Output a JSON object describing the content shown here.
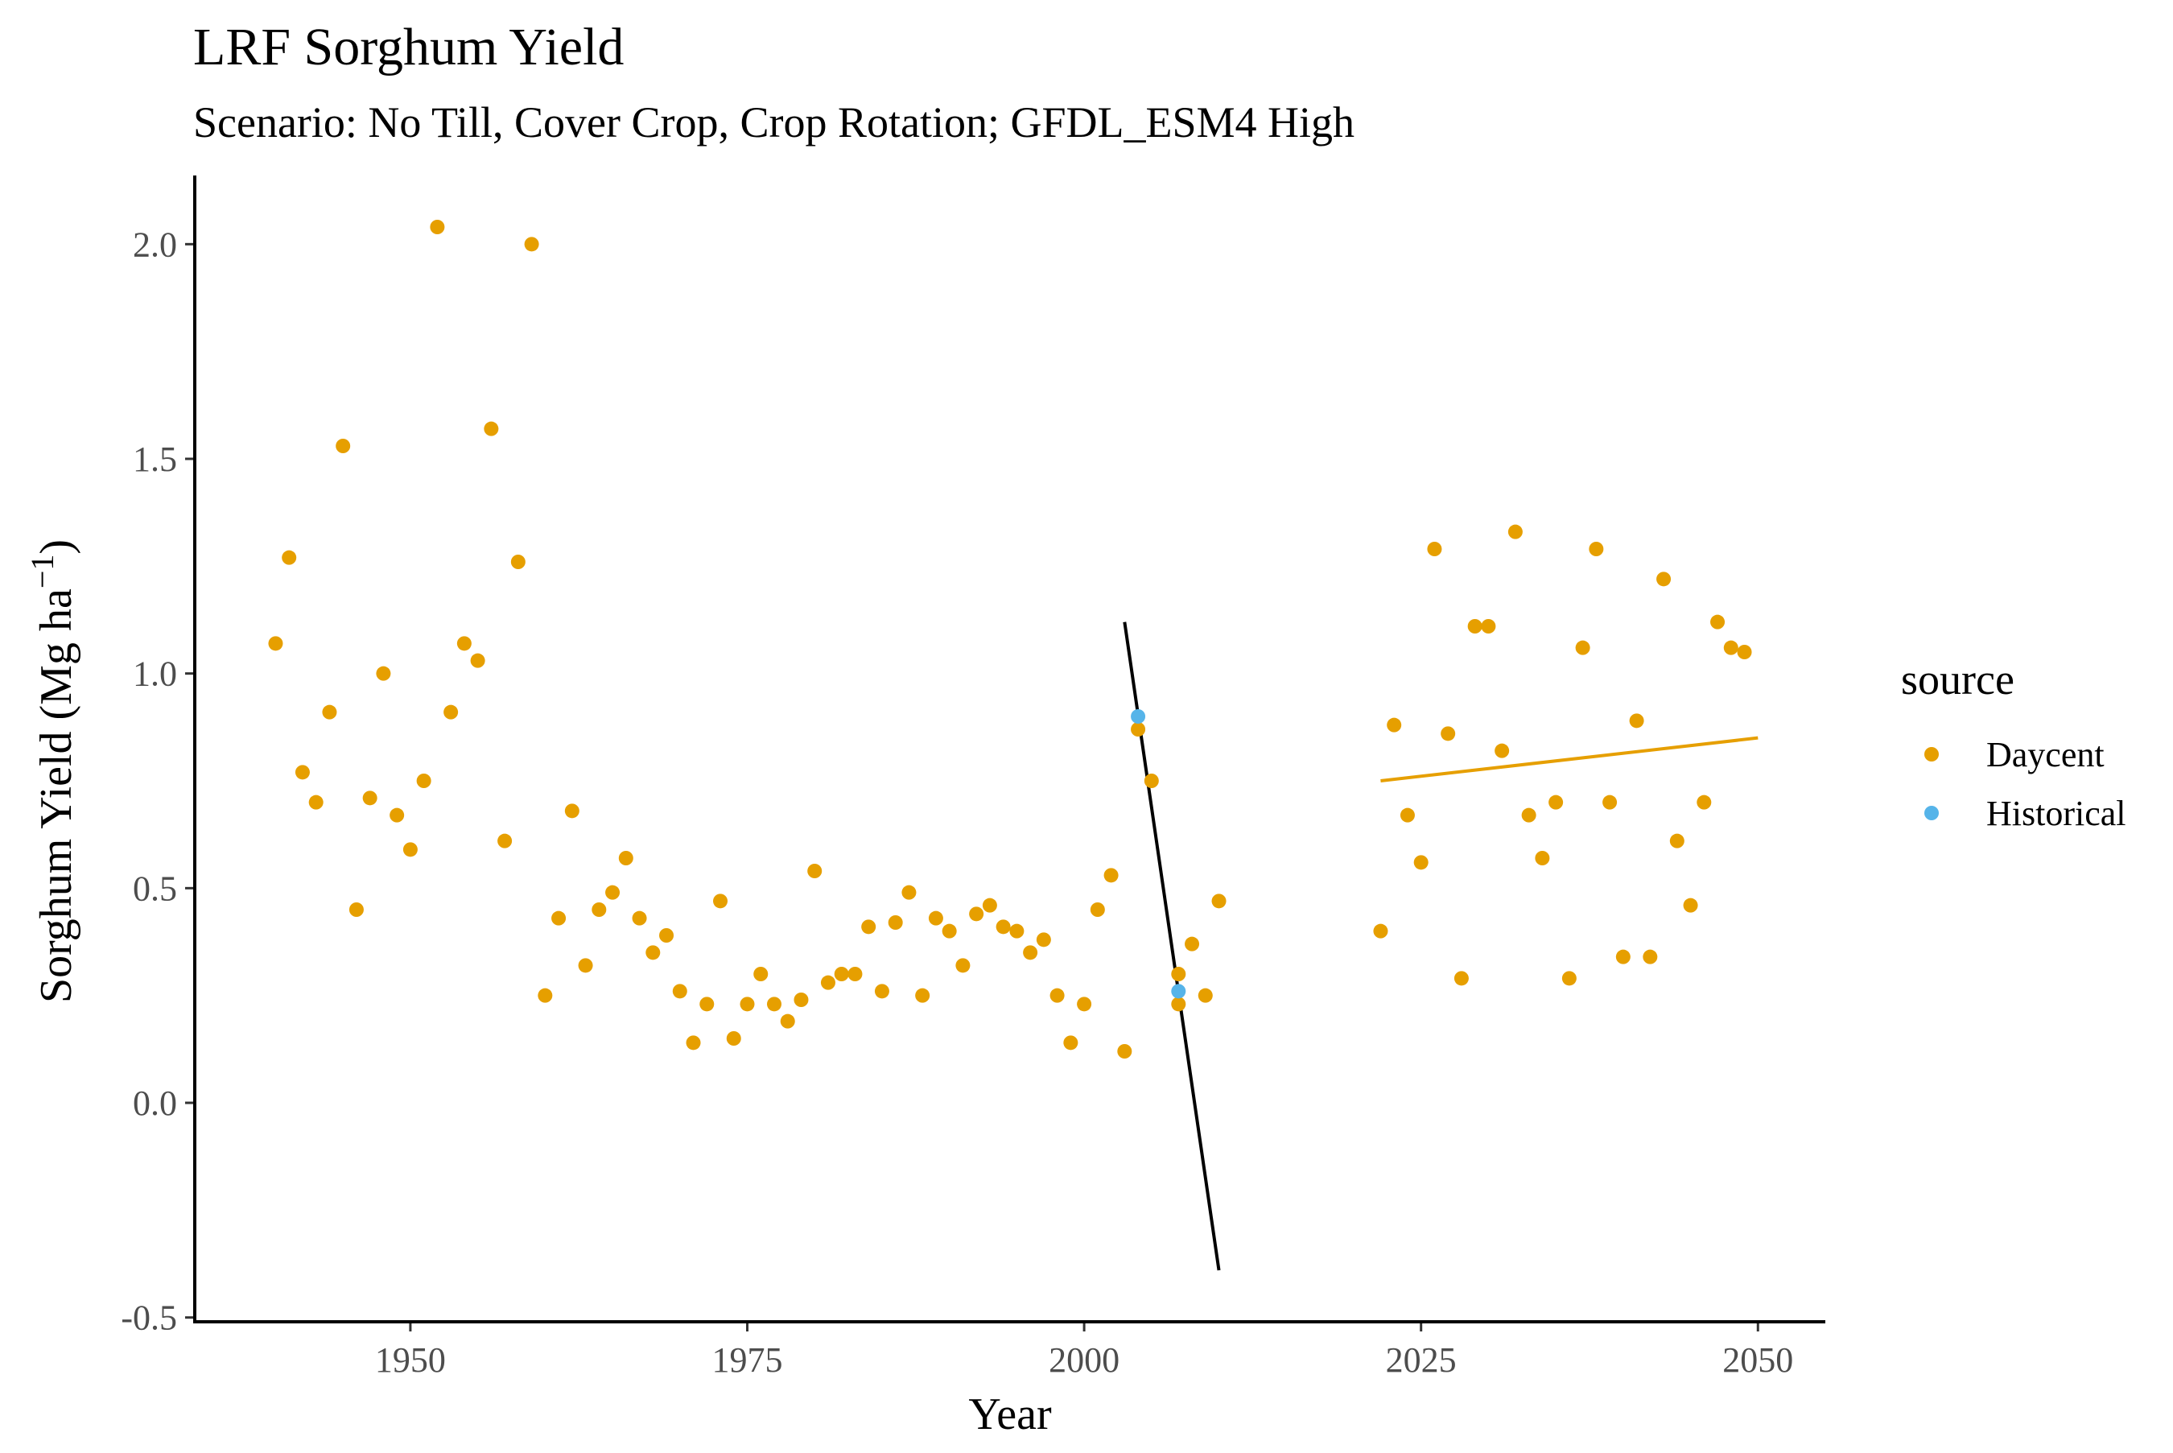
{
  "chart_data": {
    "type": "scatter",
    "title": "LRF Sorghum Yield",
    "subtitle": "Scenario: No Till, Cover Crop, Crop Rotation; GFDL_ESM4 High",
    "xlabel": "Year",
    "ylabel": "Sorghum Yield (Mg ha",
    "ylabel_superscript": "−1",
    "ylabel_close": ")",
    "xlim": [
      1934,
      2055
    ],
    "ylim": [
      -0.51,
      2.16
    ],
    "xticks": [
      1950,
      1975,
      2000,
      2025,
      2050
    ],
    "yticks": [
      -0.5,
      0.0,
      0.5,
      1.0,
      1.5,
      2.0
    ],
    "ytick_labels": [
      "-0.5",
      "0.0",
      "0.5",
      "1.0",
      "1.5",
      "2.0"
    ],
    "grid": false,
    "legend": {
      "title": "source",
      "position": "right",
      "entries": [
        {
          "name": "Daycent",
          "color": "#E69F00"
        },
        {
          "name": "Historical",
          "color": "#56B4E9"
        }
      ]
    },
    "series": [
      {
        "name": "Daycent",
        "color": "#E69F00",
        "points": [
          [
            1940,
            1.07
          ],
          [
            1941,
            1.27
          ],
          [
            1942,
            0.77
          ],
          [
            1943,
            0.7
          ],
          [
            1944,
            0.91
          ],
          [
            1945,
            1.53
          ],
          [
            1946,
            0.45
          ],
          [
            1947,
            0.71
          ],
          [
            1948,
            1.0
          ],
          [
            1949,
            0.67
          ],
          [
            1950,
            0.59
          ],
          [
            1951,
            0.75
          ],
          [
            1952,
            2.04
          ],
          [
            1953,
            0.91
          ],
          [
            1954,
            1.07
          ],
          [
            1955,
            1.03
          ],
          [
            1956,
            1.57
          ],
          [
            1957,
            0.61
          ],
          [
            1958,
            1.26
          ],
          [
            1959,
            2.0
          ],
          [
            1960,
            0.25
          ],
          [
            1961,
            0.43
          ],
          [
            1962,
            0.68
          ],
          [
            1963,
            0.32
          ],
          [
            1964,
            0.45
          ],
          [
            1965,
            0.49
          ],
          [
            1966,
            0.57
          ],
          [
            1967,
            0.43
          ],
          [
            1968,
            0.35
          ],
          [
            1969,
            0.39
          ],
          [
            1970,
            0.26
          ],
          [
            1971,
            0.14
          ],
          [
            1972,
            0.23
          ],
          [
            1973,
            0.47
          ],
          [
            1974,
            0.15
          ],
          [
            1975,
            0.23
          ],
          [
            1976,
            0.3
          ],
          [
            1977,
            0.23
          ],
          [
            1978,
            0.19
          ],
          [
            1979,
            0.24
          ],
          [
            1980,
            0.54
          ],
          [
            1981,
            0.28
          ],
          [
            1982,
            0.3
          ],
          [
            1983,
            0.3
          ],
          [
            1984,
            0.41
          ],
          [
            1985,
            0.26
          ],
          [
            1986,
            0.42
          ],
          [
            1987,
            0.49
          ],
          [
            1988,
            0.25
          ],
          [
            1989,
            0.43
          ],
          [
            1990,
            0.4
          ],
          [
            1991,
            0.32
          ],
          [
            1992,
            0.44
          ],
          [
            1993,
            0.46
          ],
          [
            1994,
            0.41
          ],
          [
            1995,
            0.4
          ],
          [
            1996,
            0.35
          ],
          [
            1997,
            0.38
          ],
          [
            1998,
            0.25
          ],
          [
            1999,
            0.14
          ],
          [
            2000,
            0.23
          ],
          [
            2001,
            0.45
          ],
          [
            2002,
            0.53
          ],
          [
            2003,
            0.12
          ],
          [
            2004,
            0.87
          ],
          [
            2005,
            0.75
          ],
          [
            2007,
            0.3
          ],
          [
            2007,
            0.23
          ],
          [
            2008,
            0.37
          ],
          [
            2009,
            0.25
          ],
          [
            2010,
            0.47
          ],
          [
            2022,
            0.4
          ],
          [
            2023,
            0.88
          ],
          [
            2024,
            0.67
          ],
          [
            2025,
            0.56
          ],
          [
            2026,
            1.29
          ],
          [
            2027,
            0.86
          ],
          [
            2028,
            0.29
          ],
          [
            2029,
            1.11
          ],
          [
            2030,
            1.11
          ],
          [
            2031,
            0.82
          ],
          [
            2032,
            1.33
          ],
          [
            2033,
            0.67
          ],
          [
            2034,
            0.57
          ],
          [
            2035,
            0.7
          ],
          [
            2036,
            0.29
          ],
          [
            2037,
            1.06
          ],
          [
            2038,
            1.29
          ],
          [
            2039,
            0.7
          ],
          [
            2040,
            0.34
          ],
          [
            2041,
            0.89
          ],
          [
            2042,
            0.34
          ],
          [
            2043,
            1.22
          ],
          [
            2044,
            0.61
          ],
          [
            2045,
            0.46
          ],
          [
            2046,
            0.7
          ],
          [
            2047,
            1.12
          ],
          [
            2048,
            1.06
          ],
          [
            2049,
            1.05
          ]
        ]
      },
      {
        "name": "Historical",
        "color": "#56B4E9",
        "points": [
          [
            2004,
            0.9
          ],
          [
            2007,
            0.26
          ]
        ]
      }
    ],
    "trend_lines": [
      {
        "color": "#000000",
        "x": [
          2003,
          2010
        ],
        "y": [
          1.12,
          -0.39
        ]
      },
      {
        "color": "#E69F00",
        "x": [
          2022,
          2050
        ],
        "y": [
          0.75,
          0.85
        ]
      }
    ]
  }
}
